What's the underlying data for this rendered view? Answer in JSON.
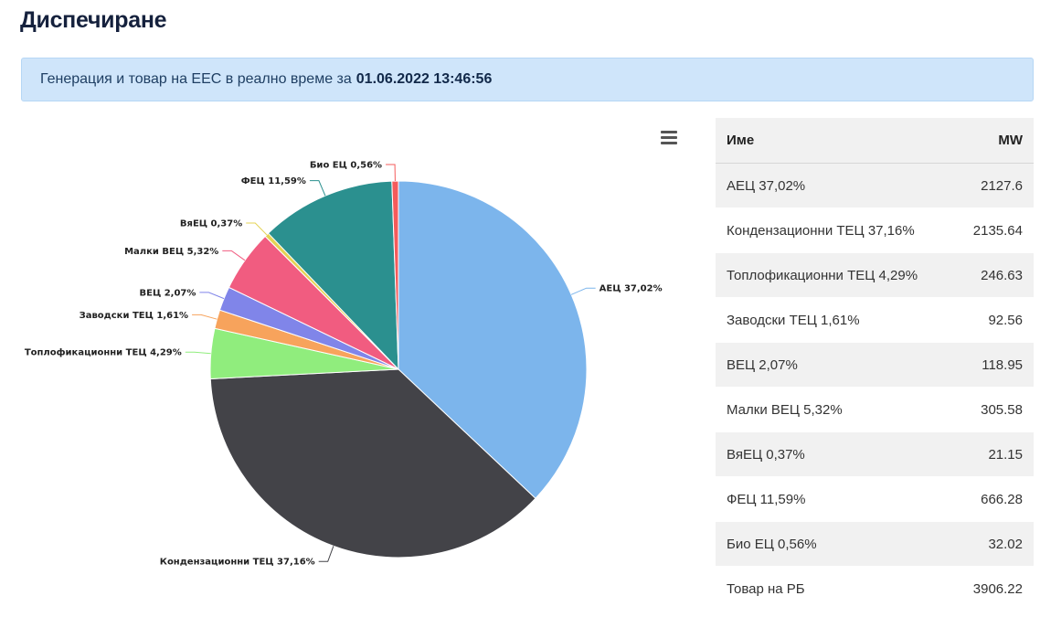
{
  "page": {
    "title": "Диспечиране",
    "banner_text": "Генерация и товар на ЕЕС в реално време за",
    "banner_timestamp": "01.06.2022 13:46:56"
  },
  "chart_data": {
    "type": "pie",
    "slices": [
      {
        "label": "АЕЦ 37,02%",
        "value": 2127.6,
        "color": "#7cb5ec"
      },
      {
        "label": "Кондензационни ТЕЦ 37,16%",
        "value": 2135.64,
        "color": "#434348"
      },
      {
        "label": "Топлофикационни ТЕЦ 4,29%",
        "value": 246.63,
        "color": "#90ed7d"
      },
      {
        "label": "Заводски ТЕЦ 1,61%",
        "value": 92.56,
        "color": "#f7a35c"
      },
      {
        "label": "ВЕЦ 2,07%",
        "value": 118.95,
        "color": "#8085e9"
      },
      {
        "label": "Малки ВЕЦ 5,32%",
        "value": 305.58,
        "color": "#f15c80"
      },
      {
        "label": "ВяЕЦ 0,37%",
        "value": 21.15,
        "color": "#e4d354"
      },
      {
        "label": "ФЕЦ 11,59%",
        "value": 666.28,
        "color": "#2b908f"
      },
      {
        "label": "Био ЕЦ 0,56%",
        "value": 32.02,
        "color": "#f45b5b"
      }
    ]
  },
  "table": {
    "headers": {
      "name": "Име",
      "mw": "MW"
    },
    "rows": [
      {
        "name": "АЕЦ 37,02%",
        "mw": "2127.6"
      },
      {
        "name": "Кондензационни ТЕЦ 37,16%",
        "mw": "2135.64"
      },
      {
        "name": "Топлофикационни ТЕЦ 4,29%",
        "mw": "246.63"
      },
      {
        "name": "Заводски ТЕЦ 1,61%",
        "mw": "92.56"
      },
      {
        "name": "ВЕЦ 2,07%",
        "mw": "118.95"
      },
      {
        "name": "Малки ВЕЦ 5,32%",
        "mw": "305.58"
      },
      {
        "name": "ВяЕЦ 0,37%",
        "mw": "21.15"
      },
      {
        "name": "ФЕЦ 11,59%",
        "mw": "666.28"
      },
      {
        "name": "Био ЕЦ 0,56%",
        "mw": "32.02"
      },
      {
        "name": "Товар на РБ",
        "mw": "3906.22"
      }
    ]
  },
  "icons": {
    "chart_menu": "hamburger-menu-icon"
  }
}
